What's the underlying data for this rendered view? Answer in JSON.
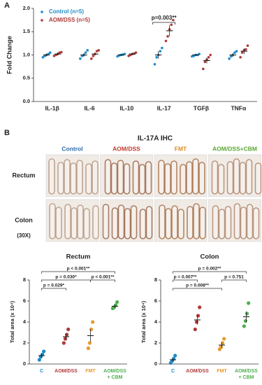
{
  "panels": {
    "a": "A",
    "b": "B"
  },
  "ihc": {
    "title": "IL-17A IHC",
    "columns": [
      {
        "label": "Control",
        "color": "#2e6aa8"
      },
      {
        "label": "AOM/DSS",
        "color": "#c0392b"
      },
      {
        "label": "FMT",
        "color": "#e08a1e"
      },
      {
        "label": "AOM/DSS+CBM",
        "color": "#5aa832"
      }
    ],
    "rows": [
      "Rectum",
      "Colon"
    ],
    "magnification": "(30X)"
  },
  "chart_data": [
    {
      "type": "dot",
      "ylabel": "Fold Change",
      "categories": [
        "IL-1β",
        "IL-6",
        "IL-10",
        "IL-17",
        "TGFβ",
        "TNFα"
      ],
      "series": [
        {
          "name": "Control (n=5)",
          "color": "#1f8bc6",
          "values": [
            1.0,
            1.0,
            1.0,
            1.0,
            1.0,
            1.0
          ],
          "errors": [
            0.03,
            0.04,
            0.02,
            0.08,
            0.02,
            0.04
          ],
          "points": [
            [
              0.95,
              0.98,
              1.0,
              1.02,
              1.05
            ],
            [
              0.92,
              0.98,
              1.0,
              1.05,
              1.1
            ],
            [
              0.97,
              0.99,
              1.0,
              1.01,
              1.02
            ],
            [
              0.8,
              0.95,
              1.0,
              1.08,
              1.15
            ],
            [
              0.97,
              0.98,
              1.0,
              1.0,
              1.02
            ],
            [
              0.92,
              0.97,
              1.0,
              1.05,
              1.08
            ]
          ]
        },
        {
          "name": "AOM/DSS (n=5)",
          "color": "#b03a3a",
          "values": [
            1.02,
            1.02,
            1.02,
            1.52,
            0.88,
            1.08
          ],
          "errors": [
            0.03,
            0.03,
            0.02,
            0.12,
            0.06,
            0.06
          ],
          "points": [
            [
              0.98,
              1.0,
              1.02,
              1.05,
              1.06
            ],
            [
              0.92,
              0.98,
              1.02,
              1.08,
              1.1
            ],
            [
              0.98,
              1.0,
              1.02,
              1.03,
              1.05
            ],
            [
              1.3,
              1.4,
              1.55,
              1.65,
              1.75
            ],
            [
              0.7,
              0.85,
              0.9,
              0.95,
              1.0
            ],
            [
              0.95,
              1.05,
              1.1,
              1.12,
              1.2
            ]
          ]
        }
      ],
      "ylim": [
        0,
        2
      ],
      "yticks": [
        {
          "value": 0,
          "label": "0.0"
        },
        {
          "value": 0.5,
          "label": "0.5"
        },
        {
          "value": 1,
          "label": "1.0"
        },
        {
          "value": 1.5,
          "label": "1.5"
        },
        {
          "value": 2,
          "label": "2.0"
        }
      ],
      "annotation": {
        "category": 3,
        "label": "p=0.003**"
      }
    },
    {
      "type": "dot",
      "title": "Rectum",
      "ylabel": "Total area (x 10⁴)",
      "categories": [
        [
          "C"
        ],
        [
          "AOM/DSS"
        ],
        [
          "FMT"
        ],
        [
          "AOM/DSS",
          "+ CBM"
        ]
      ],
      "colors": [
        "#1f8bc6",
        "#b03a3a",
        "#e69a2e",
        "#4caf50"
      ],
      "values": [
        0.8,
        2.6,
        2.7,
        5.5
      ],
      "errors": [
        0.2,
        0.3,
        0.6,
        0.15
      ],
      "points": [
        [
          0.4,
          0.7,
          0.9,
          1.2
        ],
        [
          2.0,
          2.4,
          2.8,
          3.3
        ],
        [
          1.5,
          2.0,
          3.3,
          4.0
        ],
        [
          5.3,
          5.4,
          5.6,
          5.9
        ]
      ],
      "ylim": [
        0,
        8
      ],
      "yticks": [
        0,
        2,
        4,
        6,
        8
      ],
      "comparisons": [
        {
          "from": 0,
          "to": 3,
          "label": "p < 0.001**"
        },
        {
          "from": 0,
          "to": 2,
          "label": "p = 0.030*"
        },
        {
          "from": 2,
          "to": 3,
          "label": "p < 0.001**"
        },
        {
          "from": 0,
          "to": 1,
          "label": "p = 0.029*"
        }
      ]
    },
    {
      "type": "dot",
      "title": "Colon",
      "ylabel": "Total area (x 10⁴)",
      "categories": [
        [
          "C"
        ],
        [
          "AOM/DSS"
        ],
        [
          "FMT"
        ],
        [
          "AOM/DSS",
          "+ CBM"
        ]
      ],
      "colors": [
        "#1f8bc6",
        "#b03a3a",
        "#e69a2e",
        "#4caf50"
      ],
      "values": [
        0.4,
        4.2,
        1.8,
        4.5
      ],
      "errors": [
        0.15,
        0.45,
        0.25,
        0.5
      ],
      "points": [
        [
          0.1,
          0.3,
          0.5,
          0.8
        ],
        [
          3.3,
          4.0,
          4.6,
          5.4
        ],
        [
          1.4,
          1.6,
          2.0,
          2.4
        ],
        [
          3.6,
          4.1,
          4.8,
          5.8
        ]
      ],
      "ylim": [
        0,
        8
      ],
      "yticks": [
        0,
        2,
        4,
        6,
        8
      ],
      "comparisons": [
        {
          "from": 0,
          "to": 3,
          "label": "p = 0.002**"
        },
        {
          "from": 0,
          "to": 1,
          "label": "p = 0.007**"
        },
        {
          "from": 2,
          "to": 3,
          "label": "p = 0.751"
        },
        {
          "from": 0,
          "to": 2,
          "label": "p = 0.008**"
        }
      ]
    }
  ]
}
